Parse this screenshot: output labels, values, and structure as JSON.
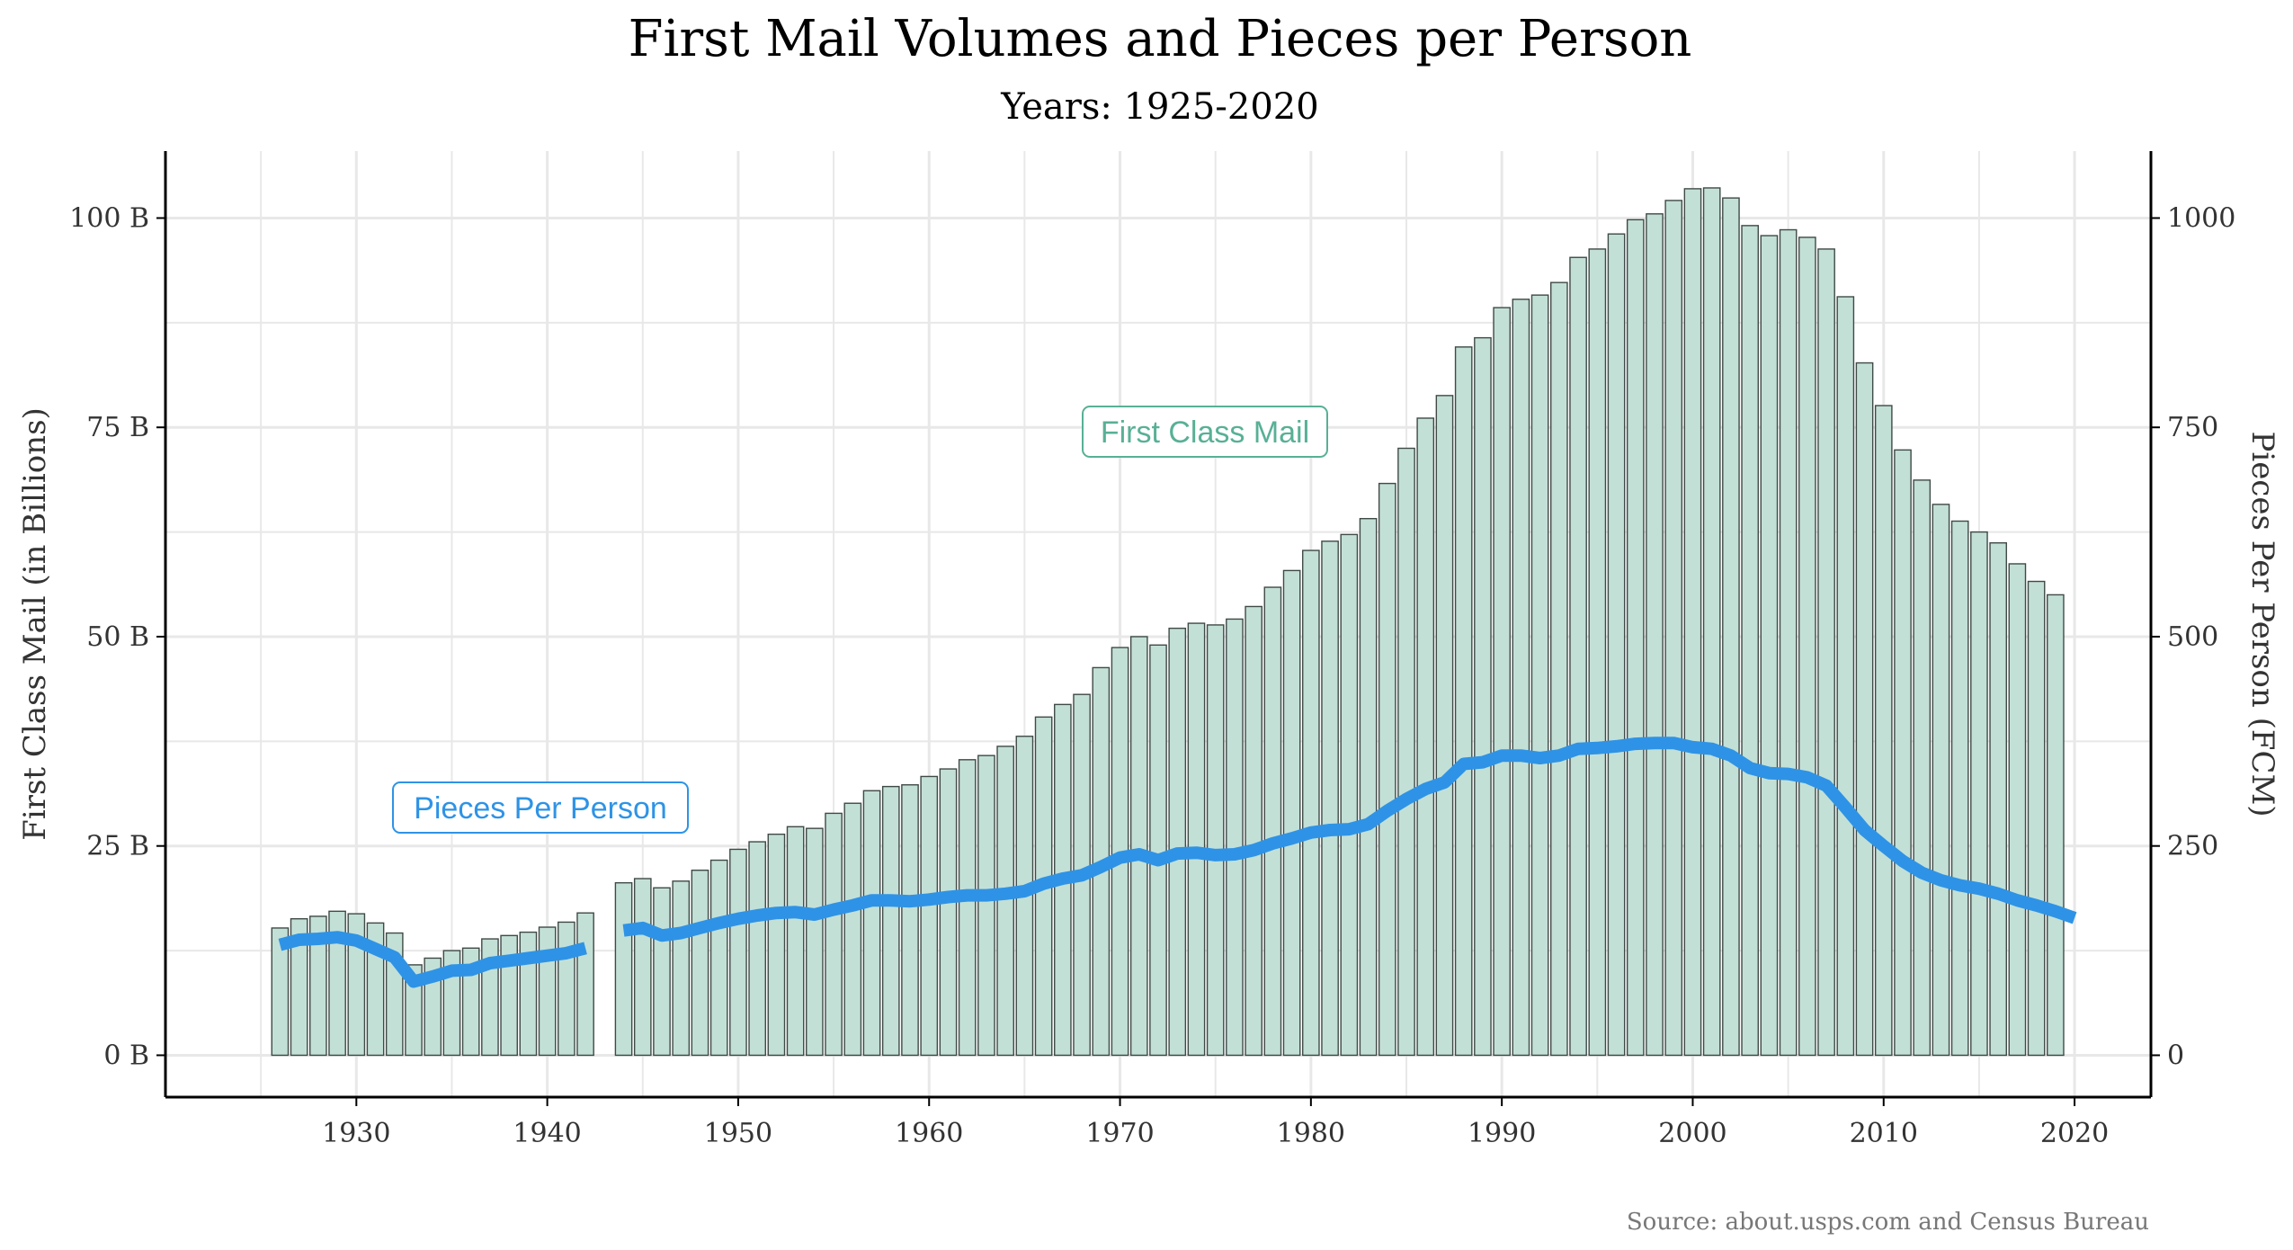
{
  "chart_data": {
    "type": "bar+line",
    "title": "First Mail Volumes and Pieces per Person",
    "subtitle": "Years: 1925-2020",
    "ylabel_left": "First Class Mail (in Billions)",
    "ylabel_right": "Pieces Per Person (FCM)",
    "source": "Source: about.usps.com and Census Bureau",
    "xlim": [
      1920,
      2024
    ],
    "ylim_left": [
      -5,
      108
    ],
    "ylim_right": [
      -50,
      1080
    ],
    "x_ticks": [
      1930,
      1940,
      1950,
      1960,
      1970,
      1980,
      1990,
      2000,
      2010,
      2020
    ],
    "x_tick_labels": [
      "1930",
      "1940",
      "1950",
      "1960",
      "1970",
      "1980",
      "1990",
      "2000",
      "2010",
      "2020"
    ],
    "y_left_ticks": [
      0,
      25,
      50,
      75,
      100
    ],
    "y_left_tick_labels": [
      "0 B",
      "25 B",
      "50 B",
      "75 B",
      "100 B"
    ],
    "y_right_ticks": [
      0,
      250,
      500,
      750,
      1000
    ],
    "y_right_tick_labels": [
      "0",
      "250",
      "500",
      "750",
      "1000"
    ],
    "grid": true,
    "colors": {
      "bar_fill": "#c3e0d7",
      "bar_stroke": "#3f4a46",
      "line": "#2e93e6",
      "label_fcm": "#58b096",
      "label_ppp": "#2e93e6",
      "grid": "#e8e8e8"
    },
    "annotations": [
      {
        "text": "First Class Mail",
        "series": "bars",
        "x": 1975.5,
        "y": 75
      },
      {
        "text": "Pieces Per Person",
        "series": "line",
        "x": 1934,
        "y": 30
      }
    ],
    "series": [
      {
        "name": "First Class Mail",
        "type": "bar",
        "axis": "left",
        "unit": "billions",
        "x": [
          1926,
          1927,
          1928,
          1929,
          1930,
          1931,
          1932,
          1933,
          1934,
          1935,
          1936,
          1937,
          1938,
          1939,
          1940,
          1941,
          1942,
          1944,
          1945,
          1946,
          1947,
          1948,
          1949,
          1950,
          1951,
          1952,
          1953,
          1954,
          1955,
          1956,
          1957,
          1958,
          1959,
          1960,
          1961,
          1962,
          1963,
          1964,
          1965,
          1966,
          1967,
          1968,
          1969,
          1970,
          1971,
          1972,
          1973,
          1974,
          1975,
          1976,
          1977,
          1978,
          1979,
          1980,
          1981,
          1982,
          1983,
          1984,
          1985,
          1986,
          1987,
          1988,
          1989,
          1990,
          1991,
          1992,
          1993,
          1994,
          1995,
          1996,
          1997,
          1998,
          1999,
          2000,
          2001,
          2002,
          2003,
          2004,
          2005,
          2006,
          2007,
          2008,
          2009,
          2010,
          2011,
          2012,
          2013,
          2014,
          2015,
          2016,
          2017,
          2018,
          2019
        ],
        "values": [
          15.2,
          16.3,
          16.6,
          17.2,
          16.9,
          15.8,
          14.6,
          10.8,
          11.6,
          12.5,
          12.8,
          13.9,
          14.3,
          14.7,
          15.3,
          15.9,
          17.0,
          20.6,
          21.1,
          20.0,
          20.8,
          22.1,
          23.3,
          24.6,
          25.5,
          26.4,
          27.3,
          27.1,
          28.9,
          30.1,
          31.6,
          32.1,
          32.3,
          33.3,
          34.2,
          35.3,
          35.8,
          36.9,
          38.1,
          40.4,
          41.9,
          43.1,
          46.3,
          48.7,
          50.0,
          49.0,
          51.0,
          51.6,
          51.4,
          52.1,
          53.6,
          55.9,
          57.9,
          60.3,
          61.4,
          62.2,
          64.1,
          68.3,
          72.5,
          76.1,
          78.8,
          84.6,
          85.7,
          89.3,
          90.3,
          90.8,
          92.3,
          95.3,
          96.3,
          98.1,
          99.8,
          100.5,
          102.1,
          103.5,
          103.6,
          102.4,
          99.1,
          97.9,
          98.6,
          97.7,
          96.3,
          90.6,
          82.7,
          77.6,
          72.3,
          68.7,
          65.8,
          63.8,
          62.5,
          61.2,
          58.7,
          56.6,
          55.0
        ]
      },
      {
        "name": "Pieces Per Person",
        "type": "line",
        "axis": "right",
        "unit": "pieces",
        "segments": [
          {
            "x": [
              1926,
              1927,
              1928,
              1929,
              1930,
              1931,
              1932,
              1933,
              1934,
              1935,
              1936,
              1937,
              1938,
              1939,
              1940,
              1941,
              1942
            ],
            "values": [
              132,
              138,
              139,
              141,
              137,
              127,
              117,
              88,
              94,
              101,
              102,
              110,
              113,
              116,
              119,
              122,
              128
            ]
          },
          {
            "x": [
              1944,
              1945,
              1946,
              1947,
              1948,
              1949,
              1950,
              1951,
              1952,
              1953,
              1954,
              1955,
              1956,
              1957,
              1958,
              1959,
              1960,
              1961,
              1962,
              1963,
              1964,
              1965,
              1966,
              1967,
              1968,
              1969,
              1970,
              1971,
              1972,
              1973,
              1974,
              1975,
              1976,
              1977,
              1978,
              1979,
              1980,
              1981,
              1982,
              1983,
              1984,
              1985,
              1986,
              1987,
              1988,
              1989,
              1990,
              1991,
              1992,
              1993,
              1994,
              1995,
              1996,
              1997,
              1998,
              1999,
              2000,
              2001,
              2002,
              2003,
              2004,
              2005,
              2006,
              2007,
              2008,
              2009,
              2010,
              2011,
              2012,
              2013,
              2014,
              2015,
              2016,
              2017,
              2018,
              2019,
              2020
            ],
            "values": [
              149,
              152,
              143,
              146,
              152,
              158,
              163,
              167,
              170,
              171,
              168,
              174,
              179,
              185,
              185,
              184,
              186,
              189,
              191,
              191,
              193,
              196,
              205,
              211,
              215,
              225,
              236,
              240,
              233,
              241,
              242,
              239,
              240,
              245,
              253,
              259,
              266,
              269,
              270,
              276,
              292,
              306,
              318,
              326,
              348,
              350,
              358,
              358,
              355,
              358,
              366,
              367,
              369,
              372,
              373,
              373,
              368,
              366,
              358,
              343,
              337,
              336,
              332,
              322,
              296,
              269,
              250,
              232,
              218,
              209,
              203,
              199,
              193,
              185,
              179,
              172,
              164
            ]
          }
        ]
      }
    ]
  }
}
